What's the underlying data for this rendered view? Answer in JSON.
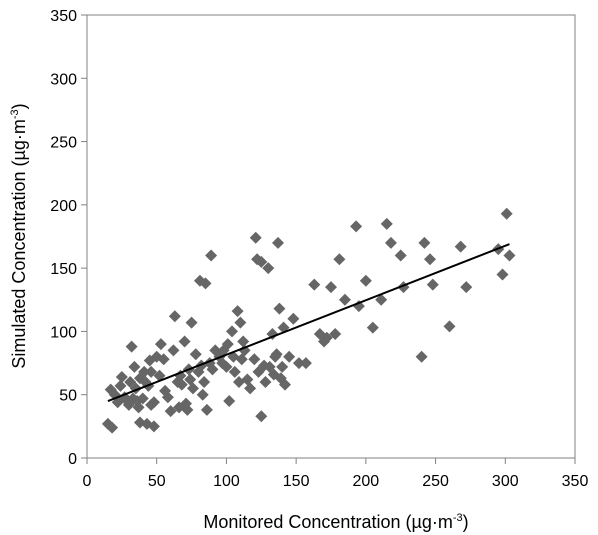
{
  "chart_data": {
    "type": "scatter",
    "xlabel": "Monitored Concentration (µg·m",
    "xlabel_unit_exponent": "-3",
    "xlabel_close": ")",
    "ylabel": "Simulated Concentration (µg·m",
    "ylabel_unit_exponent": "-3",
    "ylabel_close": ")",
    "xlim": [
      0,
      350
    ],
    "ylim": [
      0,
      350
    ],
    "xticks": [
      0,
      50,
      100,
      150,
      200,
      250,
      300,
      350
    ],
    "yticks": [
      0,
      50,
      100,
      150,
      200,
      250,
      300,
      350
    ],
    "grid": false,
    "legend": "none",
    "marker_color": "#666666",
    "trendline_color": "#000000",
    "trendline": {
      "x": [
        15,
        303
      ],
      "y": [
        45,
        169
      ]
    },
    "series": [
      {
        "points": [
          [
            15,
            27
          ],
          [
            17,
            54
          ],
          [
            18,
            24
          ],
          [
            20,
            50
          ],
          [
            22,
            44
          ],
          [
            24,
            57
          ],
          [
            25,
            64
          ],
          [
            27,
            48
          ],
          [
            28,
            46
          ],
          [
            30,
            42
          ],
          [
            31,
            60
          ],
          [
            32,
            88
          ],
          [
            33,
            47
          ],
          [
            34,
            72
          ],
          [
            35,
            55
          ],
          [
            36,
            45
          ],
          [
            37,
            40
          ],
          [
            38,
            63
          ],
          [
            38,
            28
          ],
          [
            40,
            47
          ],
          [
            41,
            68
          ],
          [
            42,
            60
          ],
          [
            43,
            27
          ],
          [
            44,
            57
          ],
          [
            45,
            77
          ],
          [
            46,
            42
          ],
          [
            46,
            68
          ],
          [
            48,
            25
          ],
          [
            48,
            44
          ],
          [
            50,
            80
          ],
          [
            52,
            65
          ],
          [
            53,
            90
          ],
          [
            55,
            78
          ],
          [
            56,
            53
          ],
          [
            58,
            48
          ],
          [
            60,
            37
          ],
          [
            62,
            85
          ],
          [
            63,
            112
          ],
          [
            65,
            60
          ],
          [
            66,
            40
          ],
          [
            67,
            65
          ],
          [
            68,
            58
          ],
          [
            70,
            92
          ],
          [
            71,
            43
          ],
          [
            72,
            38
          ],
          [
            73,
            70
          ],
          [
            74,
            62
          ],
          [
            75,
            107
          ],
          [
            76,
            55
          ],
          [
            78,
            82
          ],
          [
            80,
            68
          ],
          [
            81,
            140
          ],
          [
            82,
            73
          ],
          [
            83,
            50
          ],
          [
            84,
            60
          ],
          [
            85,
            138
          ],
          [
            86,
            38
          ],
          [
            88,
            75
          ],
          [
            89,
            160
          ],
          [
            90,
            70
          ],
          [
            92,
            85
          ],
          [
            95,
            80
          ],
          [
            97,
            75
          ],
          [
            98,
            85
          ],
          [
            100,
            72
          ],
          [
            101,
            90
          ],
          [
            102,
            45
          ],
          [
            104,
            100
          ],
          [
            105,
            80
          ],
          [
            106,
            68
          ],
          [
            108,
            116
          ],
          [
            109,
            60
          ],
          [
            110,
            107
          ],
          [
            111,
            78
          ],
          [
            112,
            92
          ],
          [
            113,
            85
          ],
          [
            115,
            62
          ],
          [
            117,
            55
          ],
          [
            120,
            78
          ],
          [
            121,
            174
          ],
          [
            122,
            157
          ],
          [
            123,
            68
          ],
          [
            125,
            33
          ],
          [
            125,
            155
          ],
          [
            127,
            73
          ],
          [
            128,
            60
          ],
          [
            130,
            150
          ],
          [
            131,
            72
          ],
          [
            133,
            98
          ],
          [
            134,
            66
          ],
          [
            135,
            80
          ],
          [
            136,
            82
          ],
          [
            137,
            170
          ],
          [
            138,
            118
          ],
          [
            139,
            63
          ],
          [
            140,
            72
          ],
          [
            141,
            103
          ],
          [
            142,
            58
          ],
          [
            145,
            80
          ],
          [
            148,
            110
          ],
          [
            152,
            75
          ],
          [
            157,
            75
          ],
          [
            163,
            137
          ],
          [
            167,
            98
          ],
          [
            170,
            92
          ],
          [
            172,
            95
          ],
          [
            175,
            135
          ],
          [
            178,
            98
          ],
          [
            181,
            157
          ],
          [
            185,
            125
          ],
          [
            193,
            183
          ],
          [
            195,
            120
          ],
          [
            200,
            140
          ],
          [
            205,
            103
          ],
          [
            211,
            125
          ],
          [
            215,
            185
          ],
          [
            218,
            170
          ],
          [
            225,
            160
          ],
          [
            227,
            135
          ],
          [
            240,
            80
          ],
          [
            242,
            170
          ],
          [
            246,
            157
          ],
          [
            248,
            137
          ],
          [
            260,
            104
          ],
          [
            268,
            167
          ],
          [
            272,
            135
          ],
          [
            295,
            165
          ],
          [
            298,
            145
          ],
          [
            301,
            193
          ],
          [
            303,
            160
          ]
        ]
      }
    ]
  }
}
